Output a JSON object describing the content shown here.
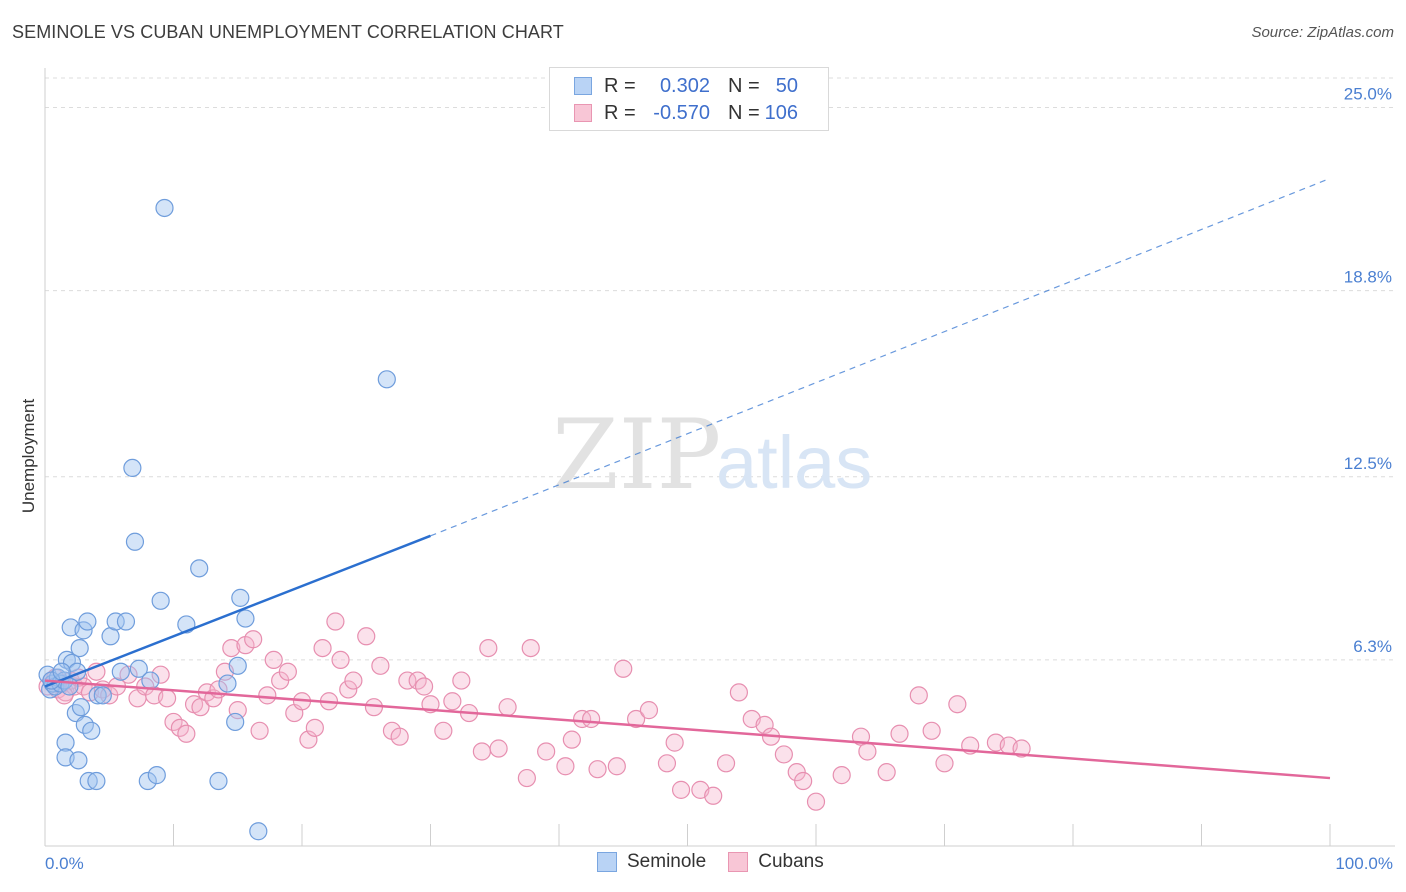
{
  "header": {
    "title": "SEMINOLE VS CUBAN UNEMPLOYMENT CORRELATION CHART",
    "source": "Source: ZipAtlas.com"
  },
  "legend": {
    "r_label": "R =",
    "n_label": "N =",
    "rows": [
      {
        "name": "Seminole",
        "r": "0.302",
        "n": "50",
        "fill": "#b9d3f5",
        "stroke": "#7aa6e0"
      },
      {
        "name": "Cubans",
        "r": "-0.570",
        "n": "106",
        "fill": "#f8c6d6",
        "stroke": "#e996b2"
      }
    ]
  },
  "bottom_legend": [
    {
      "name": "Seminole",
      "fill": "#b9d3f5",
      "stroke": "#7aa6e0"
    },
    {
      "name": "Cubans",
      "fill": "#f8c6d6",
      "stroke": "#e996b2"
    }
  ],
  "watermark": {
    "part1": "ZIP",
    "part2": "atlas"
  },
  "colors": {
    "seminole_point_fill": "rgba(160,195,240,0.45)",
    "seminole_point_stroke": "#6f9ddc",
    "seminole_line": "#2b6fcf",
    "cubans_point_fill": "rgba(245,180,205,0.40)",
    "cubans_point_stroke": "#e78fb0",
    "cubans_line": "#e2679a",
    "grid": "#dcdcdc",
    "tick_label": "#4a7fd1"
  },
  "chart_data": {
    "type": "scatter",
    "title": "SEMINOLE VS CUBAN UNEMPLOYMENT CORRELATION CHART",
    "xlabel": "",
    "ylabel": "Unemployment",
    "xlim": [
      0,
      100
    ],
    "ylim": [
      0,
      26
    ],
    "x_tick_labels": [
      {
        "value": 0,
        "label": "0.0%"
      },
      {
        "value": 100,
        "label": "100.0%"
      }
    ],
    "y_ticks": [
      {
        "value": 6.3,
        "label": "6.3%"
      },
      {
        "value": 12.5,
        "label": "12.5%"
      },
      {
        "value": 18.8,
        "label": "18.8%"
      },
      {
        "value": 25.0,
        "label": "25.0%"
      }
    ],
    "grid": "horizontal dashed",
    "legend_position": "top-center",
    "series": [
      {
        "name": "Seminole",
        "points": [
          [
            0.2,
            5.8
          ],
          [
            0.4,
            5.3
          ],
          [
            0.6,
            5.5
          ],
          [
            0.8,
            5.4
          ],
          [
            1.0,
            5.7
          ],
          [
            1.2,
            5.5
          ],
          [
            1.5,
            5.6
          ],
          [
            1.7,
            6.3
          ],
          [
            1.9,
            5.4
          ],
          [
            2.1,
            6.2
          ],
          [
            2.0,
            7.4
          ],
          [
            2.5,
            5.9
          ],
          [
            2.7,
            6.7
          ],
          [
            3.0,
            7.3
          ],
          [
            3.3,
            7.6
          ],
          [
            2.4,
            4.5
          ],
          [
            2.8,
            4.7
          ],
          [
            3.1,
            4.1
          ],
          [
            3.6,
            3.9
          ],
          [
            4.1,
            5.1
          ],
          [
            4.5,
            5.1
          ],
          [
            5.1,
            7.1
          ],
          [
            5.5,
            7.6
          ],
          [
            6.3,
            7.6
          ],
          [
            5.9,
            5.9
          ],
          [
            7.3,
            6.0
          ],
          [
            7.0,
            10.3
          ],
          [
            6.8,
            12.8
          ],
          [
            9.0,
            8.3
          ],
          [
            9.3,
            21.6
          ],
          [
            11.0,
            7.5
          ],
          [
            12.0,
            9.4
          ],
          [
            14.2,
            5.5
          ],
          [
            14.8,
            4.2
          ],
          [
            15.0,
            6.1
          ],
          [
            15.2,
            8.4
          ],
          [
            15.6,
            7.7
          ],
          [
            16.6,
            0.5
          ],
          [
            26.6,
            15.8
          ],
          [
            1.6,
            3.5
          ],
          [
            1.6,
            3.0
          ],
          [
            2.6,
            2.9
          ],
          [
            3.4,
            2.2
          ],
          [
            4.0,
            2.2
          ],
          [
            8.0,
            2.2
          ],
          [
            8.7,
            2.4
          ],
          [
            13.5,
            2.2
          ],
          [
            0.5,
            5.6
          ],
          [
            1.3,
            5.9
          ],
          [
            8.2,
            5.6
          ]
        ]
      },
      {
        "name": "Cubans",
        "points": [
          [
            0.2,
            5.4
          ],
          [
            0.5,
            5.6
          ],
          [
            0.8,
            5.7
          ],
          [
            1.0,
            5.3
          ],
          [
            1.3,
            5.5
          ],
          [
            1.6,
            5.2
          ],
          [
            2.0,
            5.6
          ],
          [
            2.3,
            5.4
          ],
          [
            2.6,
            5.7
          ],
          [
            3.0,
            5.4
          ],
          [
            3.5,
            5.2
          ],
          [
            4.0,
            5.9
          ],
          [
            4.5,
            5.3
          ],
          [
            5.0,
            5.1
          ],
          [
            5.6,
            5.4
          ],
          [
            6.5,
            5.8
          ],
          [
            7.2,
            5.0
          ],
          [
            7.8,
            5.4
          ],
          [
            8.5,
            5.1
          ],
          [
            9.0,
            5.8
          ],
          [
            9.5,
            5.0
          ],
          [
            10.0,
            4.2
          ],
          [
            10.5,
            4.0
          ],
          [
            11.0,
            3.8
          ],
          [
            11.6,
            4.8
          ],
          [
            12.1,
            4.7
          ],
          [
            12.6,
            5.2
          ],
          [
            13.1,
            5.0
          ],
          [
            13.5,
            5.3
          ],
          [
            14.0,
            5.9
          ],
          [
            14.5,
            6.7
          ],
          [
            15.0,
            4.6
          ],
          [
            15.6,
            6.8
          ],
          [
            16.2,
            7.0
          ],
          [
            16.7,
            3.9
          ],
          [
            17.3,
            5.1
          ],
          [
            17.8,
            6.3
          ],
          [
            18.3,
            5.6
          ],
          [
            18.9,
            5.9
          ],
          [
            19.4,
            4.5
          ],
          [
            20.0,
            4.9
          ],
          [
            20.5,
            3.6
          ],
          [
            21.0,
            4.0
          ],
          [
            21.6,
            6.7
          ],
          [
            22.1,
            4.9
          ],
          [
            22.6,
            7.6
          ],
          [
            23.0,
            6.3
          ],
          [
            23.6,
            5.3
          ],
          [
            24.0,
            5.6
          ],
          [
            25.0,
            7.1
          ],
          [
            25.6,
            4.7
          ],
          [
            26.1,
            6.1
          ],
          [
            27.0,
            3.9
          ],
          [
            27.6,
            3.7
          ],
          [
            28.2,
            5.6
          ],
          [
            29.0,
            5.6
          ],
          [
            29.5,
            5.4
          ],
          [
            30.0,
            4.8
          ],
          [
            31.0,
            3.9
          ],
          [
            31.7,
            4.9
          ],
          [
            32.4,
            5.6
          ],
          [
            33.0,
            4.5
          ],
          [
            34.0,
            3.2
          ],
          [
            34.5,
            6.7
          ],
          [
            35.3,
            3.3
          ],
          [
            36.0,
            4.7
          ],
          [
            37.5,
            2.3
          ],
          [
            37.8,
            6.7
          ],
          [
            39.0,
            3.2
          ],
          [
            40.5,
            2.7
          ],
          [
            41.0,
            3.6
          ],
          [
            41.8,
            4.3
          ],
          [
            42.5,
            4.3
          ],
          [
            43.0,
            2.6
          ],
          [
            44.5,
            2.7
          ],
          [
            45.0,
            6.0
          ],
          [
            46.0,
            4.3
          ],
          [
            47.0,
            4.6
          ],
          [
            48.4,
            2.8
          ],
          [
            49.0,
            3.5
          ],
          [
            49.5,
            1.9
          ],
          [
            51.0,
            1.9
          ],
          [
            52.0,
            1.7
          ],
          [
            53.0,
            2.8
          ],
          [
            54.0,
            5.2
          ],
          [
            55.0,
            4.3
          ],
          [
            56.0,
            4.1
          ],
          [
            56.5,
            3.7
          ],
          [
            57.5,
            3.1
          ],
          [
            58.5,
            2.5
          ],
          [
            59.0,
            2.2
          ],
          [
            60.0,
            1.5
          ],
          [
            62.0,
            2.4
          ],
          [
            63.5,
            3.7
          ],
          [
            64.0,
            3.2
          ],
          [
            65.5,
            2.5
          ],
          [
            66.5,
            3.8
          ],
          [
            68.0,
            5.1
          ],
          [
            69.0,
            3.9
          ],
          [
            70.0,
            2.8
          ],
          [
            71.0,
            4.8
          ],
          [
            72.0,
            3.4
          ],
          [
            74.0,
            3.5
          ],
          [
            75.0,
            3.4
          ],
          [
            76.0,
            3.3
          ],
          [
            1.5,
            5.1
          ]
        ]
      }
    ],
    "trendlines": [
      {
        "series": "Seminole",
        "solid": [
          [
            0,
            5.4
          ],
          [
            30,
            10.5
          ]
        ],
        "dashed": [
          [
            30,
            10.5
          ],
          [
            100,
            22.6
          ]
        ]
      },
      {
        "series": "Cubans",
        "solid": [
          [
            0,
            5.6
          ],
          [
            100,
            2.3
          ]
        ]
      }
    ]
  }
}
